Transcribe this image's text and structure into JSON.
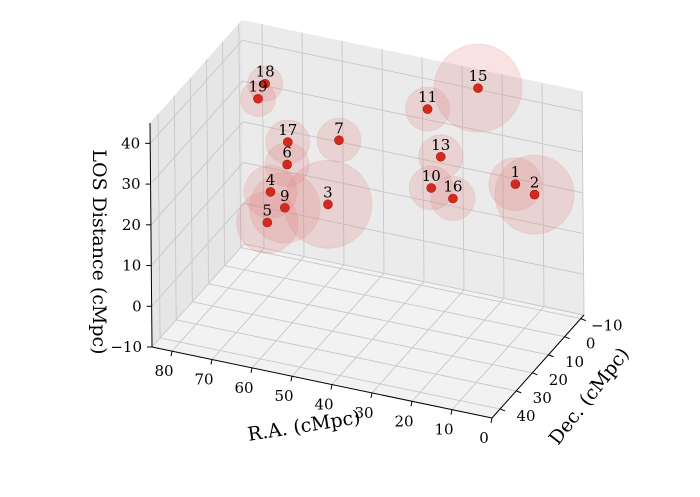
{
  "chart_data": {
    "type": "scatter",
    "projection": "3d",
    "title": "",
    "xlabel": "R.A. (cMpc)",
    "ylabel": "Dec. (cMpc)",
    "zlabel": "LOS Distance (cMpc)",
    "xlim": [
      0,
      85
    ],
    "ylim": [
      -12,
      45
    ],
    "zlim": [
      -10,
      45
    ],
    "x_ticks": [
      "0",
      "10",
      "20",
      "30",
      "40",
      "50",
      "60",
      "70",
      "80"
    ],
    "y_ticks": [
      "−10",
      "0",
      "10",
      "20",
      "30",
      "40"
    ],
    "z_ticks": [
      "−10",
      "0",
      "10",
      "20",
      "30",
      "40"
    ],
    "grid": true,
    "point_color": "#d42a1e",
    "sphere_color": "#e07a7a",
    "points": [
      {
        "label": "1",
        "x": 12,
        "y": 0,
        "z": 25,
        "r": 6
      },
      {
        "label": "2",
        "x": 6,
        "y": 3,
        "z": 25,
        "r": 9
      },
      {
        "label": "3",
        "x": 50,
        "y": 22,
        "z": 22,
        "r": 10
      },
      {
        "label": "4",
        "x": 66,
        "y": 18,
        "z": 20,
        "r": 6
      },
      {
        "label": "5",
        "x": 64,
        "y": 25,
        "z": 16,
        "r": 7
      },
      {
        "label": "6",
        "x": 63,
        "y": 15,
        "z": 26,
        "r": 5
      },
      {
        "label": "7",
        "x": 52,
        "y": 10,
        "z": 32,
        "r": 5
      },
      {
        "label": "9",
        "x": 60,
        "y": 24,
        "z": 20,
        "r": 8
      },
      {
        "label": "10",
        "x": 29,
        "y": 10,
        "z": 25,
        "r": 5
      },
      {
        "label": "11",
        "x": 33,
        "y": 2,
        "z": 40,
        "r": 5
      },
      {
        "label": "13",
        "x": 29,
        "y": 4,
        "z": 30,
        "r": 5
      },
      {
        "label": "15",
        "x": 24,
        "y": -7,
        "z": 43,
        "r": 10
      },
      {
        "label": "16",
        "x": 24,
        "y": 9,
        "z": 23,
        "r": 5
      },
      {
        "label": "17",
        "x": 64,
        "y": 12,
        "z": 30,
        "r": 5
      },
      {
        "label": "18",
        "x": 72,
        "y": 6,
        "z": 40,
        "r": 4
      },
      {
        "label": "19",
        "x": 73,
        "y": 8,
        "z": 37,
        "r": 4
      }
    ]
  }
}
